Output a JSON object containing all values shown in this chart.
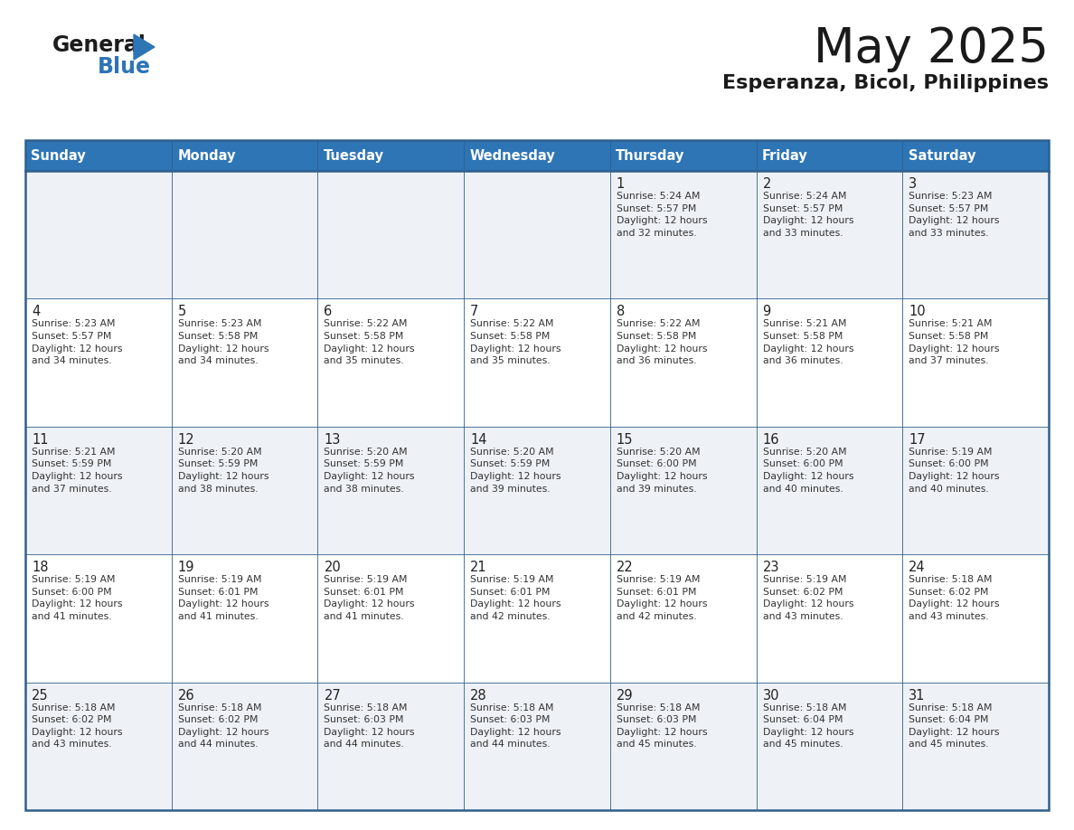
{
  "title": "May 2025",
  "subtitle": "Esperanza, Bicol, Philippines",
  "header_bg_color": "#2e75b6",
  "header_text_color": "#ffffff",
  "cell_bg_even": "#eef2f7",
  "cell_bg_odd": "#ffffff",
  "border_color": "#2e5f8a",
  "day_headers": [
    "Sunday",
    "Monday",
    "Tuesday",
    "Wednesday",
    "Thursday",
    "Friday",
    "Saturday"
  ],
  "weeks": [
    [
      {
        "day": "",
        "info": ""
      },
      {
        "day": "",
        "info": ""
      },
      {
        "day": "",
        "info": ""
      },
      {
        "day": "",
        "info": ""
      },
      {
        "day": "1",
        "info": "Sunrise: 5:24 AM\nSunset: 5:57 PM\nDaylight: 12 hours\nand 32 minutes."
      },
      {
        "day": "2",
        "info": "Sunrise: 5:24 AM\nSunset: 5:57 PM\nDaylight: 12 hours\nand 33 minutes."
      },
      {
        "day": "3",
        "info": "Sunrise: 5:23 AM\nSunset: 5:57 PM\nDaylight: 12 hours\nand 33 minutes."
      }
    ],
    [
      {
        "day": "4",
        "info": "Sunrise: 5:23 AM\nSunset: 5:57 PM\nDaylight: 12 hours\nand 34 minutes."
      },
      {
        "day": "5",
        "info": "Sunrise: 5:23 AM\nSunset: 5:58 PM\nDaylight: 12 hours\nand 34 minutes."
      },
      {
        "day": "6",
        "info": "Sunrise: 5:22 AM\nSunset: 5:58 PM\nDaylight: 12 hours\nand 35 minutes."
      },
      {
        "day": "7",
        "info": "Sunrise: 5:22 AM\nSunset: 5:58 PM\nDaylight: 12 hours\nand 35 minutes."
      },
      {
        "day": "8",
        "info": "Sunrise: 5:22 AM\nSunset: 5:58 PM\nDaylight: 12 hours\nand 36 minutes."
      },
      {
        "day": "9",
        "info": "Sunrise: 5:21 AM\nSunset: 5:58 PM\nDaylight: 12 hours\nand 36 minutes."
      },
      {
        "day": "10",
        "info": "Sunrise: 5:21 AM\nSunset: 5:58 PM\nDaylight: 12 hours\nand 37 minutes."
      }
    ],
    [
      {
        "day": "11",
        "info": "Sunrise: 5:21 AM\nSunset: 5:59 PM\nDaylight: 12 hours\nand 37 minutes."
      },
      {
        "day": "12",
        "info": "Sunrise: 5:20 AM\nSunset: 5:59 PM\nDaylight: 12 hours\nand 38 minutes."
      },
      {
        "day": "13",
        "info": "Sunrise: 5:20 AM\nSunset: 5:59 PM\nDaylight: 12 hours\nand 38 minutes."
      },
      {
        "day": "14",
        "info": "Sunrise: 5:20 AM\nSunset: 5:59 PM\nDaylight: 12 hours\nand 39 minutes."
      },
      {
        "day": "15",
        "info": "Sunrise: 5:20 AM\nSunset: 6:00 PM\nDaylight: 12 hours\nand 39 minutes."
      },
      {
        "day": "16",
        "info": "Sunrise: 5:20 AM\nSunset: 6:00 PM\nDaylight: 12 hours\nand 40 minutes."
      },
      {
        "day": "17",
        "info": "Sunrise: 5:19 AM\nSunset: 6:00 PM\nDaylight: 12 hours\nand 40 minutes."
      }
    ],
    [
      {
        "day": "18",
        "info": "Sunrise: 5:19 AM\nSunset: 6:00 PM\nDaylight: 12 hours\nand 41 minutes."
      },
      {
        "day": "19",
        "info": "Sunrise: 5:19 AM\nSunset: 6:01 PM\nDaylight: 12 hours\nand 41 minutes."
      },
      {
        "day": "20",
        "info": "Sunrise: 5:19 AM\nSunset: 6:01 PM\nDaylight: 12 hours\nand 41 minutes."
      },
      {
        "day": "21",
        "info": "Sunrise: 5:19 AM\nSunset: 6:01 PM\nDaylight: 12 hours\nand 42 minutes."
      },
      {
        "day": "22",
        "info": "Sunrise: 5:19 AM\nSunset: 6:01 PM\nDaylight: 12 hours\nand 42 minutes."
      },
      {
        "day": "23",
        "info": "Sunrise: 5:19 AM\nSunset: 6:02 PM\nDaylight: 12 hours\nand 43 minutes."
      },
      {
        "day": "24",
        "info": "Sunrise: 5:18 AM\nSunset: 6:02 PM\nDaylight: 12 hours\nand 43 minutes."
      }
    ],
    [
      {
        "day": "25",
        "info": "Sunrise: 5:18 AM\nSunset: 6:02 PM\nDaylight: 12 hours\nand 43 minutes."
      },
      {
        "day": "26",
        "info": "Sunrise: 5:18 AM\nSunset: 6:02 PM\nDaylight: 12 hours\nand 44 minutes."
      },
      {
        "day": "27",
        "info": "Sunrise: 5:18 AM\nSunset: 6:03 PM\nDaylight: 12 hours\nand 44 minutes."
      },
      {
        "day": "28",
        "info": "Sunrise: 5:18 AM\nSunset: 6:03 PM\nDaylight: 12 hours\nand 44 minutes."
      },
      {
        "day": "29",
        "info": "Sunrise: 5:18 AM\nSunset: 6:03 PM\nDaylight: 12 hours\nand 45 minutes."
      },
      {
        "day": "30",
        "info": "Sunrise: 5:18 AM\nSunset: 6:04 PM\nDaylight: 12 hours\nand 45 minutes."
      },
      {
        "day": "31",
        "info": "Sunrise: 5:18 AM\nSunset: 6:04 PM\nDaylight: 12 hours\nand 45 minutes."
      }
    ]
  ]
}
